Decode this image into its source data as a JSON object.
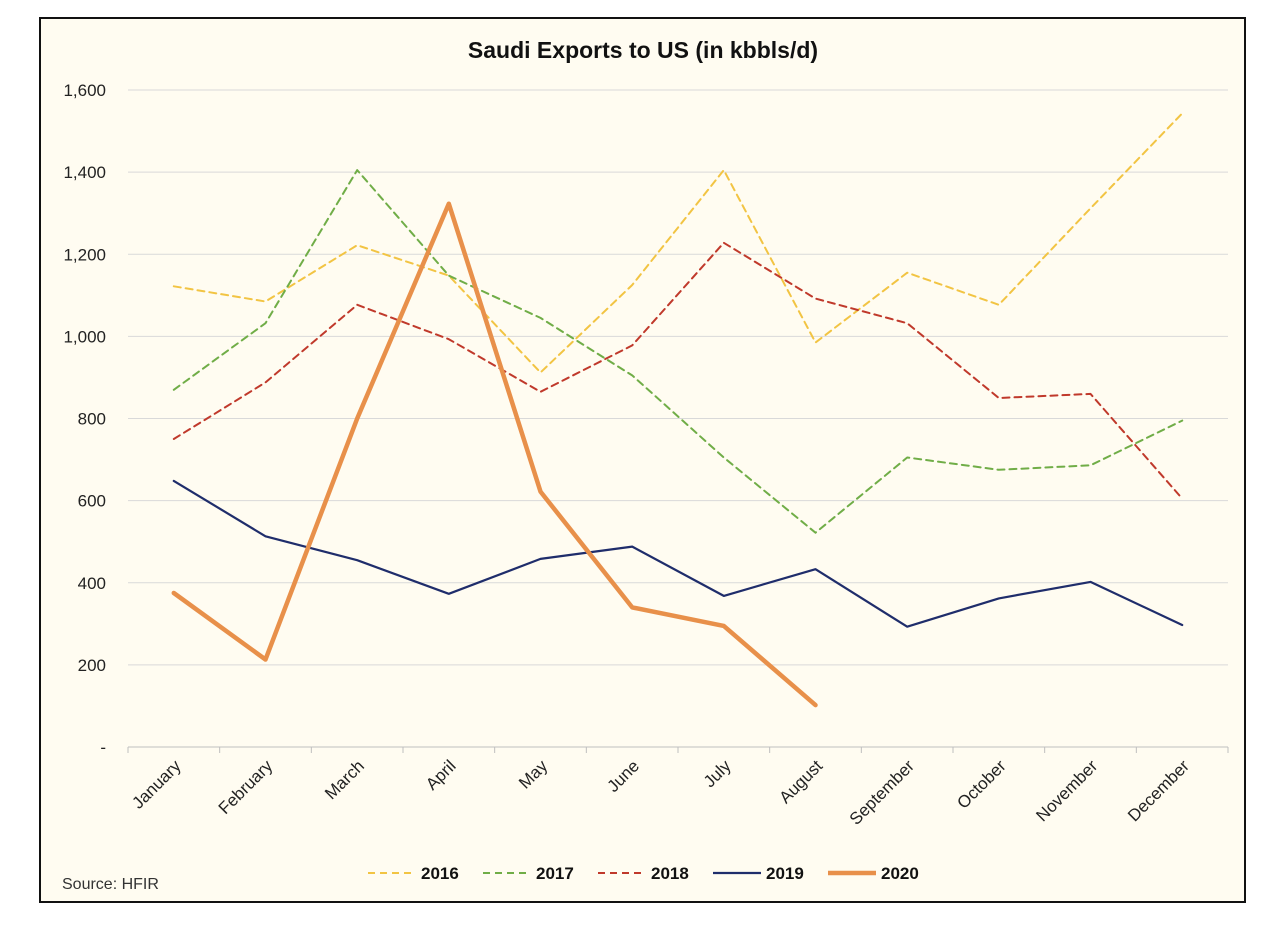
{
  "chart_data": {
    "type": "line",
    "title": "Saudi Exports to US (in kbbls/d)",
    "source": "Source: HFIR",
    "categories": [
      "January",
      "February",
      "March",
      "April",
      "May",
      "June",
      "July",
      "August",
      "September",
      "October",
      "November",
      "December"
    ],
    "ylim": [
      0,
      1600
    ],
    "yticks": [
      {
        "value": 0,
        "label": "-"
      },
      {
        "value": 200,
        "label": "200"
      },
      {
        "value": 400,
        "label": "400"
      },
      {
        "value": 600,
        "label": "600"
      },
      {
        "value": 800,
        "label": "800"
      },
      {
        "value": 1000,
        "label": "1,000"
      },
      {
        "value": 1200,
        "label": "1,200"
      },
      {
        "value": 1400,
        "label": "1,400"
      },
      {
        "value": 1600,
        "label": "1,600"
      }
    ],
    "grid": true,
    "legend_position": "bottom",
    "series": [
      {
        "name": "2016",
        "color": "#f2c443",
        "style": "dashed",
        "values": [
          1122,
          1085,
          1222,
          1148,
          912,
          1125,
          1405,
          985,
          1155,
          1077,
          1312,
          1543
        ]
      },
      {
        "name": "2017",
        "color": "#70ad47",
        "style": "dashed",
        "values": [
          870,
          1032,
          1405,
          1148,
          1045,
          905,
          705,
          522,
          705,
          675,
          686,
          795
        ]
      },
      {
        "name": "2018",
        "color": "#c0392b",
        "style": "dashed",
        "values": [
          750,
          888,
          1077,
          993,
          865,
          978,
          1228,
          1092,
          1032,
          850,
          860,
          605
        ]
      },
      {
        "name": "2019",
        "color": "#1f2d6b",
        "style": "solid",
        "values": [
          648,
          513,
          455,
          373,
          458,
          488,
          368,
          433,
          293,
          362,
          402,
          297
        ]
      },
      {
        "name": "2020",
        "color": "#e8904a",
        "style": "solid-thick",
        "values": [
          375,
          213,
          800,
          1323,
          622,
          340,
          295,
          102,
          null,
          null,
          null,
          null
        ]
      }
    ]
  }
}
